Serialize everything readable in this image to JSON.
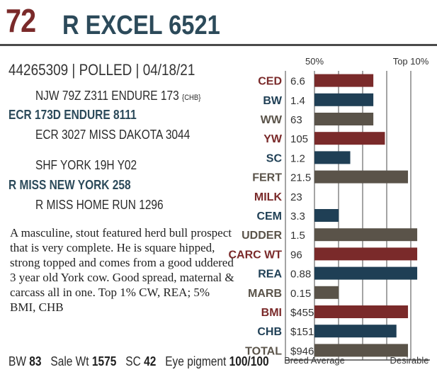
{
  "header": {
    "lot": "72",
    "name": "R EXCEL 6521"
  },
  "id_line": "44265309 | POLLED | 04/18/21",
  "pedigree": {
    "sire_sire": "NJW 79Z Z311 ENDURE 173",
    "sire_sire_tag": "{CHB}",
    "sire": "ECR 173D ENDURE 8111",
    "sire_dam": "ECR 3027 MISS DAKOTA 3044",
    "dam_sire": "SHF YORK 19H Y02",
    "dam": "R MISS NEW YORK 258",
    "dam_dam": "R MISS HOME RUN 1296"
  },
  "description": "A masculine, stout featured herd bull prospect that is very complete. He is square hipped, strong topped and comes from a good uddered 3 year old York cow. Good spread, maternal & carcass all in one. Top 1% CW, REA; 5% BMI, CHB",
  "bottom": {
    "bw_label": "BW",
    "bw_value": "83",
    "sale_wt_label": "Sale Wt",
    "sale_wt_value": "1575",
    "sc_label": "SC",
    "sc_value": "42",
    "eye_label": "Eye pigment",
    "eye_value": "100/100"
  },
  "colors": {
    "red": "#7a2a2a",
    "blue": "#1f3f55",
    "gray": "#5a5349",
    "title_blue": "#2c4a5a"
  },
  "chart_data": {
    "type": "bar",
    "header_left": "50%",
    "header_right": "Top 10%",
    "footer_left": "Breed Average",
    "footer_right": "Desirable",
    "grid": true,
    "rows": [
      {
        "trait": "CED",
        "value": "6.6",
        "level": 0.51,
        "color": "red"
      },
      {
        "trait": "BW",
        "value": "1.4",
        "level": 0.51,
        "color": "blue"
      },
      {
        "trait": "WW",
        "value": "63",
        "level": 0.51,
        "color": "gray"
      },
      {
        "trait": "YW",
        "value": "105",
        "level": 0.61,
        "color": "red"
      },
      {
        "trait": "SC",
        "value": "1.2",
        "level": 0.31,
        "color": "blue"
      },
      {
        "trait": "FERT",
        "value": "21.5",
        "level": 0.81,
        "color": "gray"
      },
      {
        "trait": "MILK",
        "value": "23",
        "level": 0.0,
        "color": "red"
      },
      {
        "trait": "CEM",
        "value": "3.3",
        "level": 0.21,
        "color": "blue"
      },
      {
        "trait": "UDDER",
        "value": "1.5",
        "level": 0.89,
        "color": "gray"
      },
      {
        "trait": "CARC WT",
        "value": "96",
        "level": 0.89,
        "color": "red"
      },
      {
        "trait": "REA",
        "value": "0.88",
        "level": 0.89,
        "color": "blue"
      },
      {
        "trait": "MARB",
        "value": "0.15",
        "level": 0.21,
        "color": "gray"
      },
      {
        "trait": "BMI",
        "value": "$455",
        "level": 0.81,
        "color": "red"
      },
      {
        "trait": "CHB",
        "value": "$151",
        "level": 0.71,
        "color": "blue"
      },
      {
        "trait": "TOTAL",
        "value": "$946",
        "level": 0.81,
        "color": "gray"
      }
    ]
  }
}
